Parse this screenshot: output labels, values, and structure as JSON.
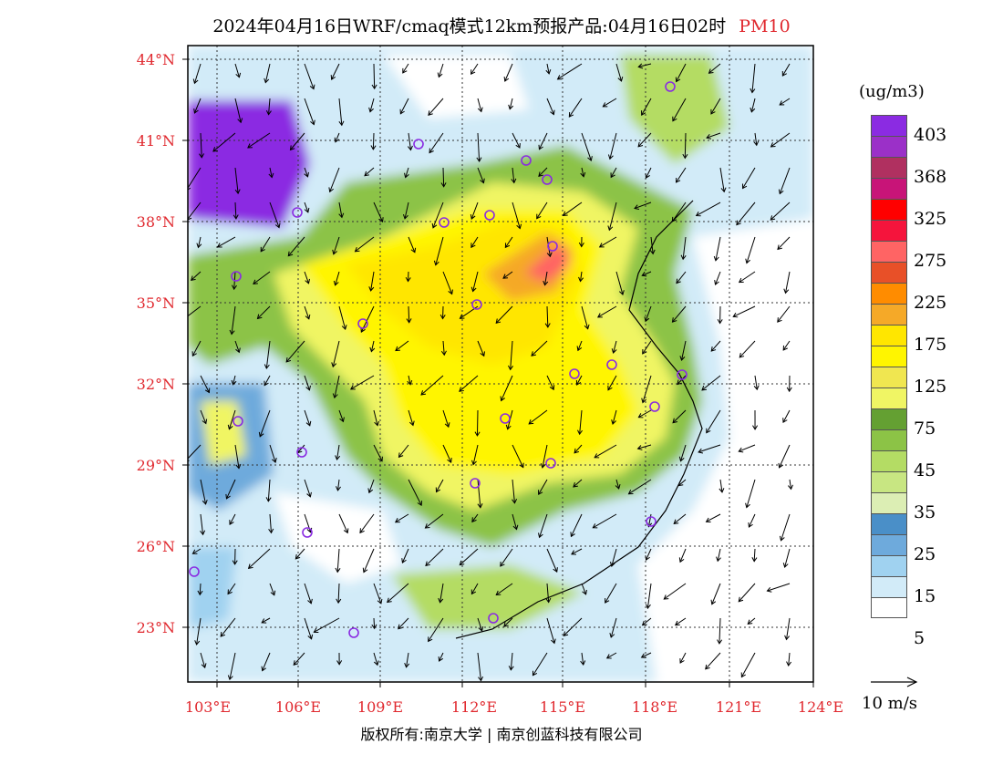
{
  "title": {
    "main": "2024年04月16日WRF/cmaq模式12km预报产品:04月16日02时",
    "pollutant": "PM10"
  },
  "map": {
    "lon_labels": [
      "103°E",
      "106°E",
      "109°E",
      "112°E",
      "115°E",
      "118°E",
      "121°E",
      "124°E"
    ],
    "lat_labels": [
      "44°N",
      "41°N",
      "38°N",
      "35°N",
      "32°N",
      "29°N",
      "26°N",
      "23°N"
    ],
    "city_marker_color": "#8a2be2",
    "wind_vector_color": "#000000"
  },
  "legend": {
    "unit": "(ug/m3)",
    "levels": [
      "403",
      "368",
      "325",
      "275",
      "225",
      "175",
      "125",
      "75",
      "45",
      "35",
      "25",
      "15",
      "5"
    ],
    "colors": [
      "#8b2be2",
      "#9b30c8",
      "#b03060",
      "#c81478",
      "#ff0000",
      "#f5143c",
      "#ff6464",
      "#e85028",
      "#ff8c00",
      "#f5a928",
      "#ffe600",
      "#fff500",
      "#f0e650",
      "#f0f564",
      "#64a032",
      "#8cc346",
      "#b4dc64",
      "#c8e682",
      "#dceeb4",
      "#4a8fc8",
      "#6eaadc",
      "#a0d2f0",
      "#d2ebf8",
      "#ffffff"
    ]
  },
  "vector_scale": {
    "label": "10 m/s"
  },
  "footer": {
    "copyright": "版权所有:南京大学",
    "company": "南京创蓝科技有限公司"
  }
}
